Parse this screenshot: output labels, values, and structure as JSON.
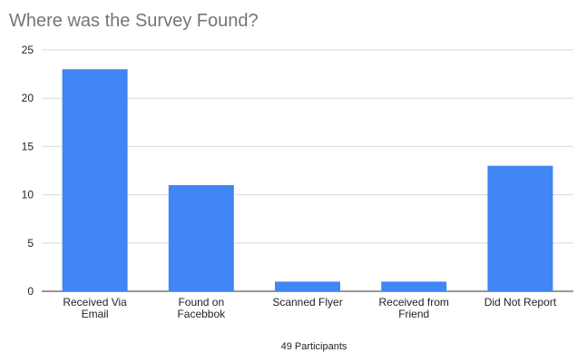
{
  "chart_data": {
    "type": "bar",
    "title": "Where was the Survey Found?",
    "xlabel": "49 Participants",
    "ylabel": "",
    "ylim": [
      0,
      25
    ],
    "yticks": [
      0,
      5,
      10,
      15,
      20,
      25
    ],
    "categories": [
      [
        "Received Via",
        "Email"
      ],
      [
        "Found on",
        "Facebbok"
      ],
      [
        "Scanned Flyer"
      ],
      [
        "Received from",
        "Friend"
      ],
      [
        "Did Not Report"
      ]
    ],
    "values": [
      23,
      11,
      1,
      1,
      13
    ],
    "bar_color": "#4285f4",
    "grid": true,
    "legend": "none"
  }
}
